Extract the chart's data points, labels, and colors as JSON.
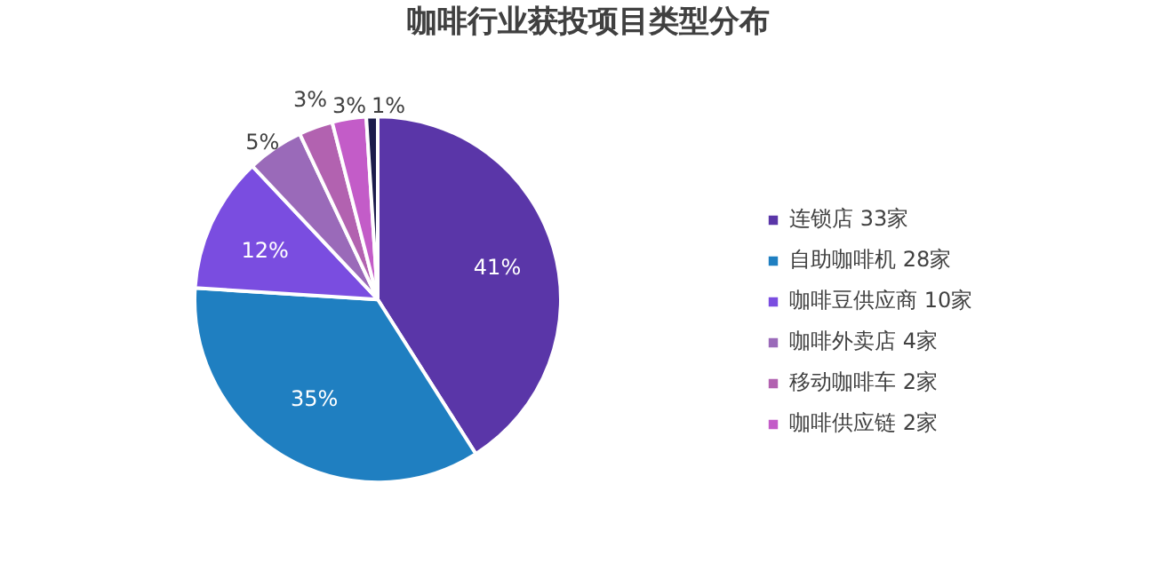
{
  "chart_data": {
    "type": "pie",
    "title": "咖啡行业获投项目类型分布",
    "categories": [
      "连锁店 33家",
      "自助咖啡机 28家",
      "咖啡豆供应商 10家",
      "咖啡外卖店 4家",
      "移动咖啡车 2家",
      "咖啡供应链 2家",
      null
    ],
    "values": [
      41,
      35,
      12,
      5,
      3,
      3,
      1
    ],
    "colors": [
      "#5a36a8",
      "#1f7fc1",
      "#7a4de0",
      "#9a6ab9",
      "#b262b0",
      "#c35cc8",
      "#1c1c4c"
    ],
    "value_labels": [
      "41%",
      "35%",
      "12%",
      "5%",
      "3%",
      "3%",
      "1%"
    ],
    "legend": "right"
  }
}
